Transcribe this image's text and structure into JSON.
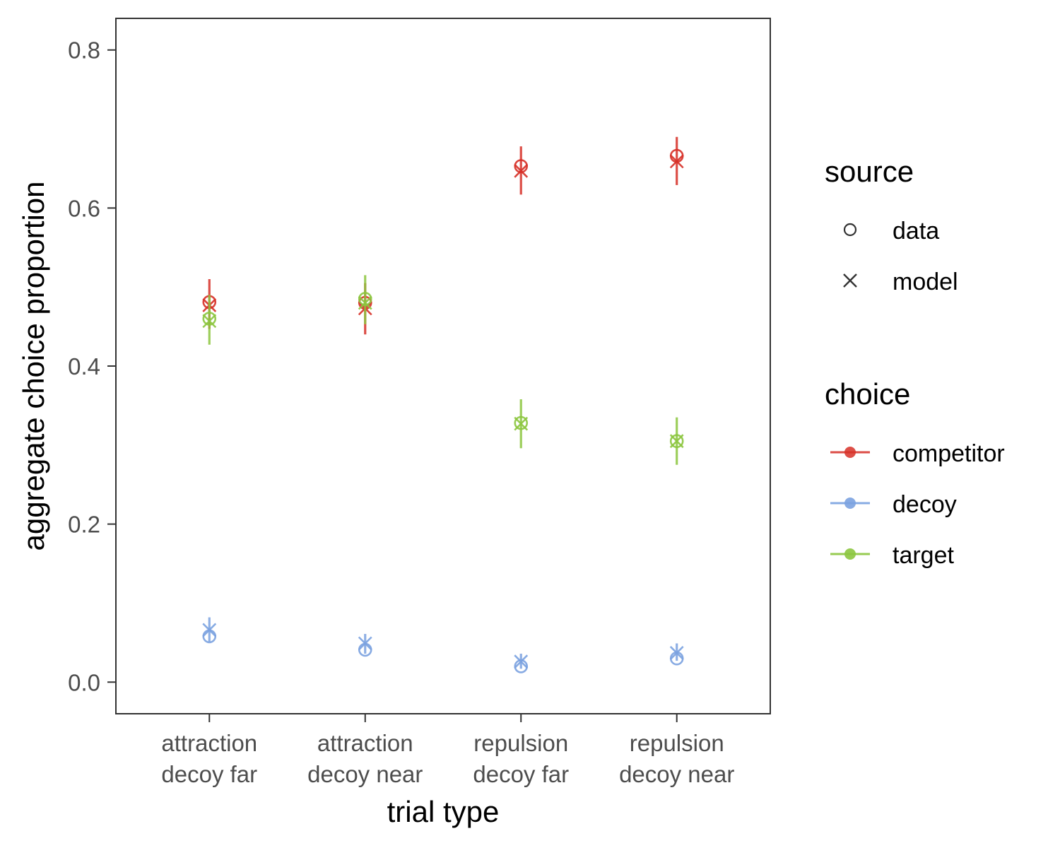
{
  "chart_data": {
    "type": "scatter",
    "xlabel": "trial type",
    "ylabel": "aggregate choice proportion",
    "ylim": [
      -0.04,
      0.84
    ],
    "yticks": [
      0.0,
      0.2,
      0.4,
      0.6,
      0.8
    ],
    "ytick_labels": [
      "0.0",
      "0.2",
      "0.4",
      "0.6",
      "0.8"
    ],
    "categories": [
      [
        "attraction",
        "decoy far"
      ],
      [
        "attraction",
        "decoy near"
      ],
      [
        "repulsion",
        "decoy far"
      ],
      [
        "repulsion",
        "decoy near"
      ]
    ],
    "grid": false,
    "legend_position": "right",
    "legends": {
      "source": {
        "title": "source",
        "items": [
          {
            "label": "data",
            "shape": "circle-open"
          },
          {
            "label": "model",
            "shape": "cross"
          }
        ]
      },
      "choice": {
        "title": "choice",
        "items": [
          {
            "label": "competitor",
            "color": "#d73027"
          },
          {
            "label": "decoy",
            "color": "#7ba2e0"
          },
          {
            "label": "target",
            "color": "#8cc63f"
          }
        ]
      }
    },
    "series": [
      {
        "name": "competitor",
        "color": "#d73027",
        "data": [
          0.481,
          0.48,
          0.653,
          0.666
        ],
        "model": [
          0.477,
          0.473,
          0.647,
          0.659
        ],
        "error_low": [
          0.447,
          0.44,
          0.617,
          0.629
        ],
        "error_high": [
          0.51,
          0.505,
          0.678,
          0.69
        ]
      },
      {
        "name": "decoy",
        "color": "#7ba2e0",
        "data": [
          0.058,
          0.041,
          0.02,
          0.03
        ],
        "model": [
          0.066,
          0.049,
          0.026,
          0.037
        ],
        "error_low": [
          0.051,
          0.036,
          0.017,
          0.027
        ],
        "error_high": [
          0.082,
          0.061,
          0.036,
          0.049
        ]
      },
      {
        "name": "target",
        "color": "#8cc63f",
        "data": [
          0.46,
          0.485,
          0.328,
          0.305
        ],
        "model": [
          0.457,
          0.48,
          0.327,
          0.305
        ],
        "error_low": [
          0.427,
          0.453,
          0.296,
          0.275
        ],
        "error_high": [
          0.49,
          0.515,
          0.358,
          0.335
        ]
      }
    ]
  }
}
